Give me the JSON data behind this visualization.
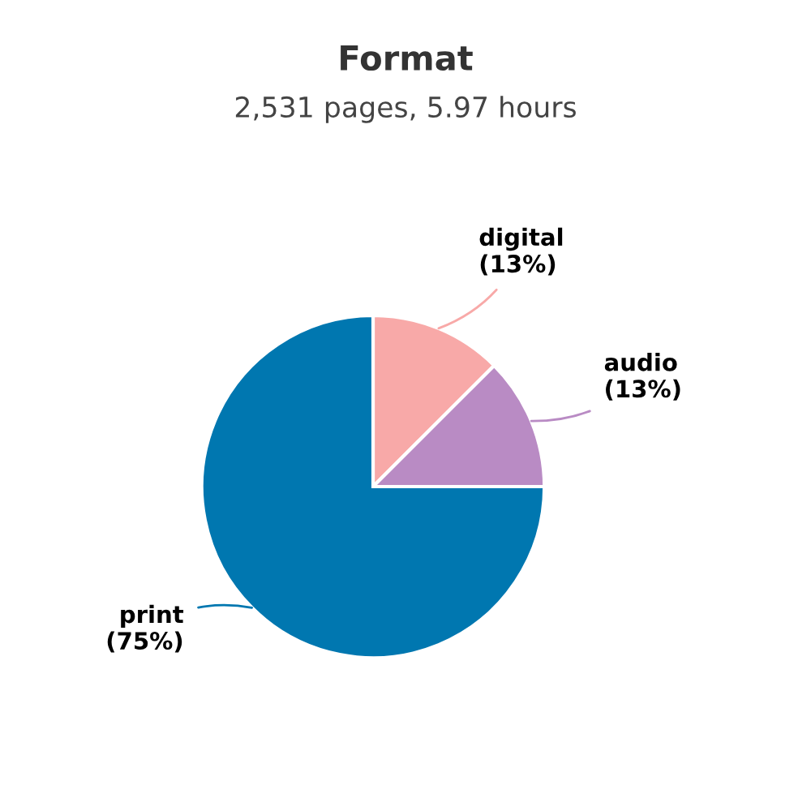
{
  "chart_data": {
    "type": "pie",
    "title": "Format",
    "subtitle": "2,531 pages, 5.97 hours",
    "categories": [
      "digital",
      "audio",
      "print"
    ],
    "values": [
      12.5,
      12.5,
      75
    ],
    "value_labels": [
      "(13%)",
      "(13%)",
      "(75%)"
    ],
    "colors": [
      "#f8a9a8",
      "#b98bc4",
      "#0077b0"
    ],
    "legend": false
  }
}
